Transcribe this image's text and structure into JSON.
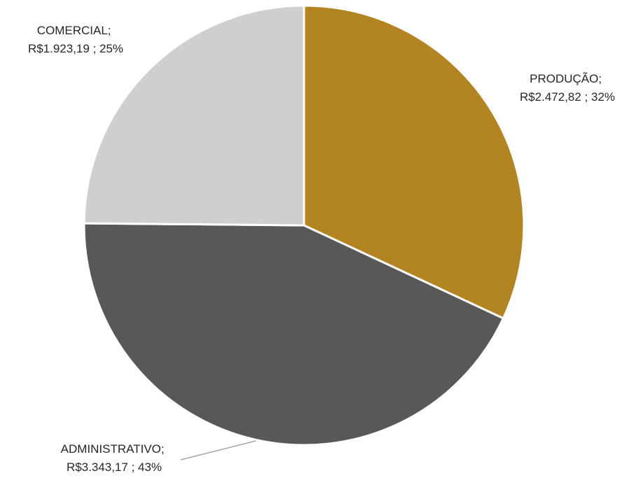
{
  "chart_data": {
    "type": "pie",
    "title": "",
    "start": "top",
    "direction": "clockwise",
    "slices": [
      {
        "label": "PRODUÇÃO",
        "value": 2472.82,
        "value_text": "R$2.472,82",
        "percent_text": "32%",
        "color": "#b38422"
      },
      {
        "label": "ADMINISTRATIVO",
        "value": 3343.17,
        "value_text": "R$3.343,17",
        "percent_text": "43%",
        "color": "#585858"
      },
      {
        "label": "COMERCIAL",
        "value": 1923.19,
        "value_text": "R$1.923,19",
        "percent_text": "25%",
        "color": "#d0cfcd"
      }
    ],
    "slice_border_color": "#ffffff",
    "leader_line_color": "#a6a6a6"
  }
}
